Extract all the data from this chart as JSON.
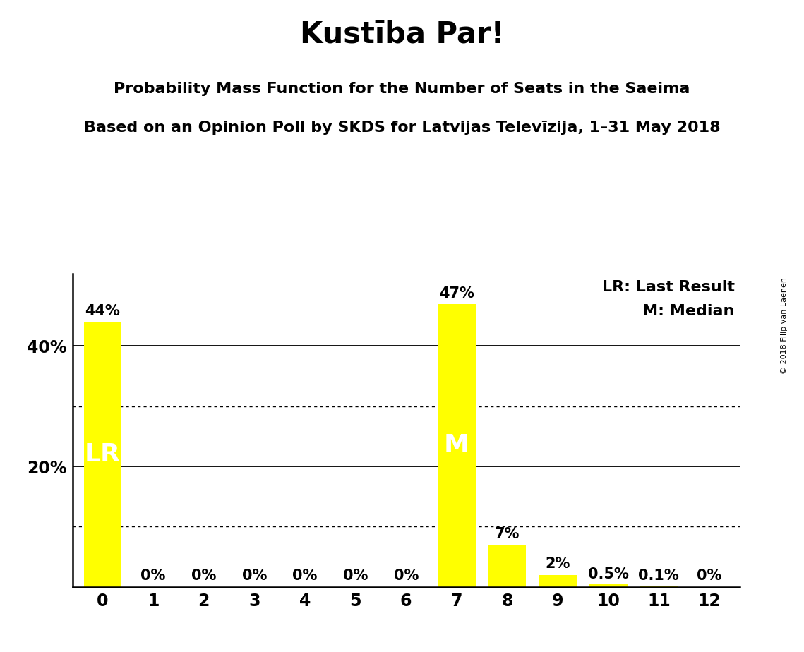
{
  "title": "Kustība Par!",
  "subtitle1": "Probability Mass Function for the Number of Seats in the Saeima",
  "subtitle2": "Based on an Opinion Poll by SKDS for Latvijas Televīzija, 1–31 May 2018",
  "copyright": "© 2018 Filip van Laenen",
  "categories": [
    0,
    1,
    2,
    3,
    4,
    5,
    6,
    7,
    8,
    9,
    10,
    11,
    12
  ],
  "values": [
    0.44,
    0.0,
    0.0,
    0.0,
    0.0,
    0.0,
    0.0,
    0.47,
    0.07,
    0.02,
    0.005,
    0.001,
    0.0
  ],
  "labels": [
    "44%",
    "0%",
    "0%",
    "0%",
    "0%",
    "0%",
    "0%",
    "47%",
    "7%",
    "2%",
    "0.5%",
    "0.1%",
    "0%"
  ],
  "bar_color": "#FFFF00",
  "lr_bar": 0,
  "median_bar": 7,
  "legend_lr": "LR: Last Result",
  "legend_m": "M: Median",
  "ylim": [
    0,
    0.52
  ],
  "yticks": [
    0.0,
    0.1,
    0.2,
    0.3,
    0.4,
    0.5
  ],
  "ytick_labels": [
    "",
    "",
    "20%",
    "",
    "40%",
    ""
  ],
  "solid_yticks": [
    0.2,
    0.4
  ],
  "dotted_yticks": [
    0.1,
    0.3
  ],
  "background_color": "#FFFFFF",
  "title_fontsize": 30,
  "subtitle_fontsize": 16,
  "label_fontsize": 15,
  "tick_fontsize": 17
}
